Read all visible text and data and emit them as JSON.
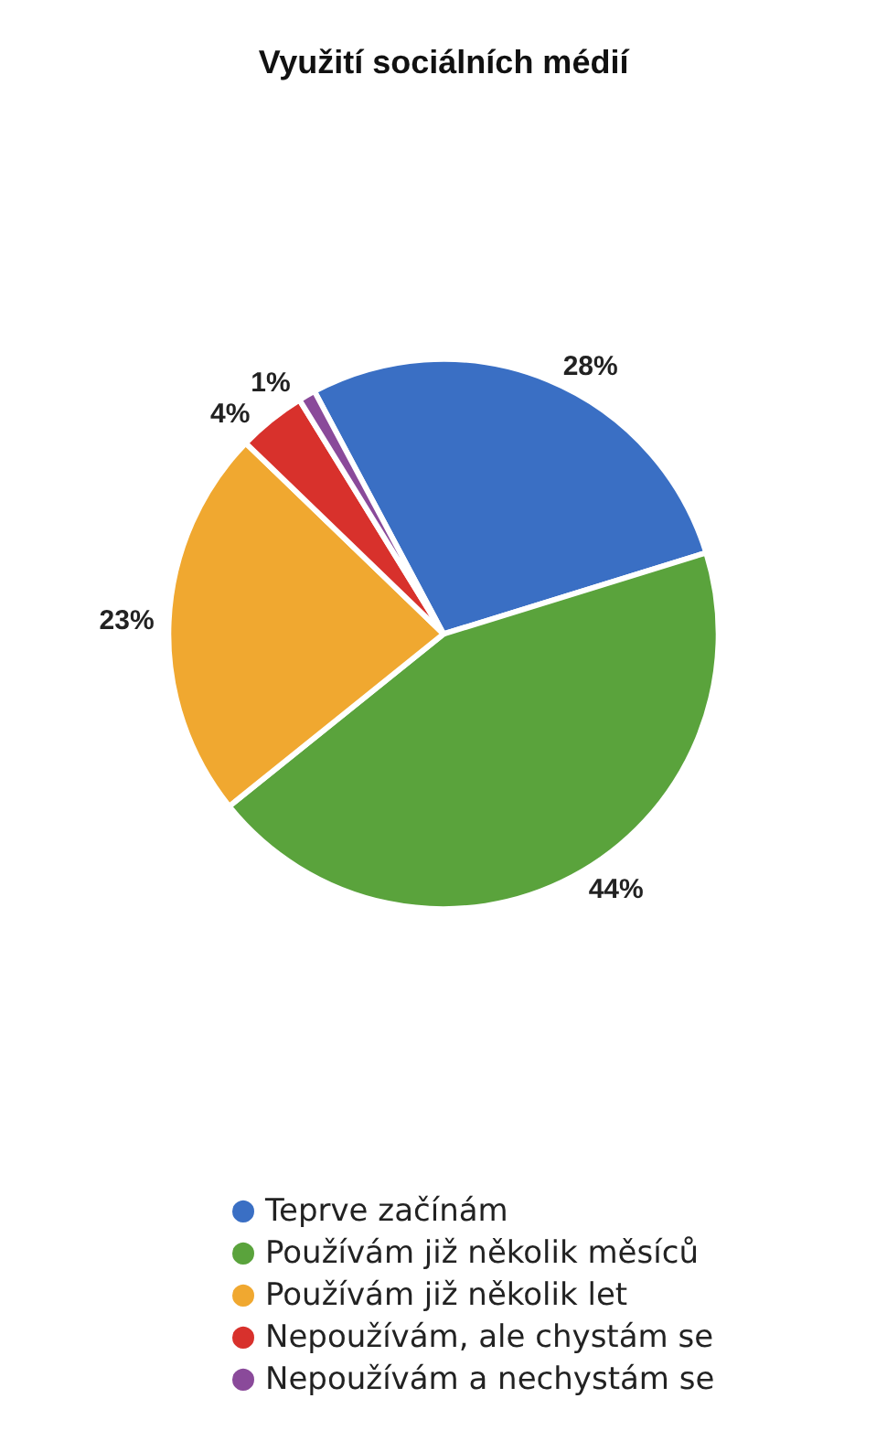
{
  "chart_data": {
    "type": "pie",
    "title": "Využití sociálních médií",
    "categories": [
      "Teprve začínám",
      "Používám již několik měsíců",
      "Používám již několik let",
      "Nepoužívám, ale chystám se",
      "Nepoužívám a nechystám se"
    ],
    "values": [
      28,
      44,
      23,
      4,
      1
    ],
    "value_labels": [
      "28%",
      "44%",
      "23%",
      "4%",
      "1%"
    ],
    "colors": [
      "#3a6fc4",
      "#5aa33c",
      "#f0a830",
      "#d8312c",
      "#8a4a9a"
    ],
    "legend": "bottom"
  }
}
